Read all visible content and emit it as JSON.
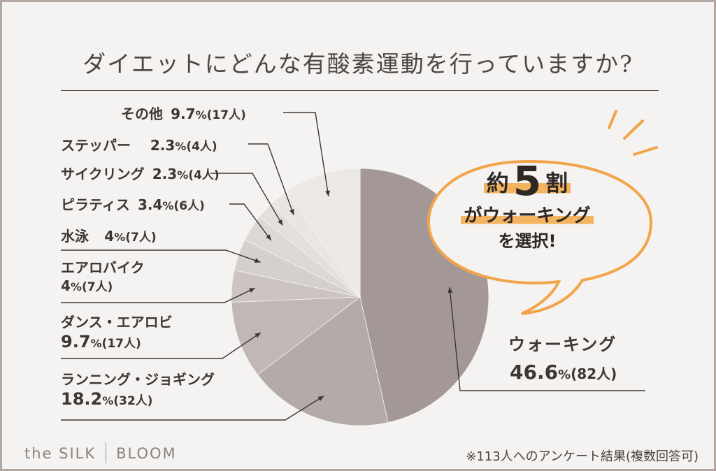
{
  "title": "ダイエットにどんな有酸素運動を行っていますか?",
  "chart_data": {
    "type": "pie",
    "start_angle_deg": 0,
    "direction": "clockwise",
    "slices": [
      {
        "name": "ウォーキング",
        "percent": 46.6,
        "percent_label": "46.6",
        "count_label": "(82人)",
        "color": "#a49896"
      },
      {
        "name": "ランニング・ジョギング",
        "percent": 18.2,
        "percent_label": "18.2",
        "count_label": "(32人)",
        "color": "#b4aaa7"
      },
      {
        "name": "ダンス・エアロビ",
        "percent": 9.7,
        "percent_label": "9.7",
        "count_label": "(17人)",
        "color": "#c1b8b5"
      },
      {
        "name": "エアロバイク",
        "percent": 4,
        "percent_label": "4",
        "count_label": "(7人)",
        "color": "#ccc4c2"
      },
      {
        "name": "水泳",
        "percent": 4,
        "percent_label": "4",
        "count_label": "(7人)",
        "color": "#d5cfcd"
      },
      {
        "name": "ピラティス",
        "percent": 3.4,
        "percent_label": "3.4",
        "count_label": "(6人)",
        "color": "#ddd8d6"
      },
      {
        "name": "サイクリング",
        "percent": 2.3,
        "percent_label": "2.3",
        "count_label": "(4人)",
        "color": "#e3dfdd"
      },
      {
        "name": "ステッパー",
        "percent": 2.3,
        "percent_label": "2.3",
        "count_label": "(4人)",
        "color": "#e8e5e3"
      },
      {
        "name": "その他",
        "percent": 9.7,
        "percent_label": "9.7",
        "count_label": "(17人)",
        "color": "#ebe8e6"
      }
    ],
    "percent_unit": "%"
  },
  "callout": {
    "prefix": "約",
    "number": "5",
    "suffix": "割",
    "line2": "がウォーキング",
    "line3": "を選択!",
    "accent_color": "#f4b45f",
    "border_color": "#f2a44a"
  },
  "brand": {
    "left": "the SILK",
    "right": "BLOOM"
  },
  "footnote": "※113人へのアンケート結果(複数回答可)"
}
